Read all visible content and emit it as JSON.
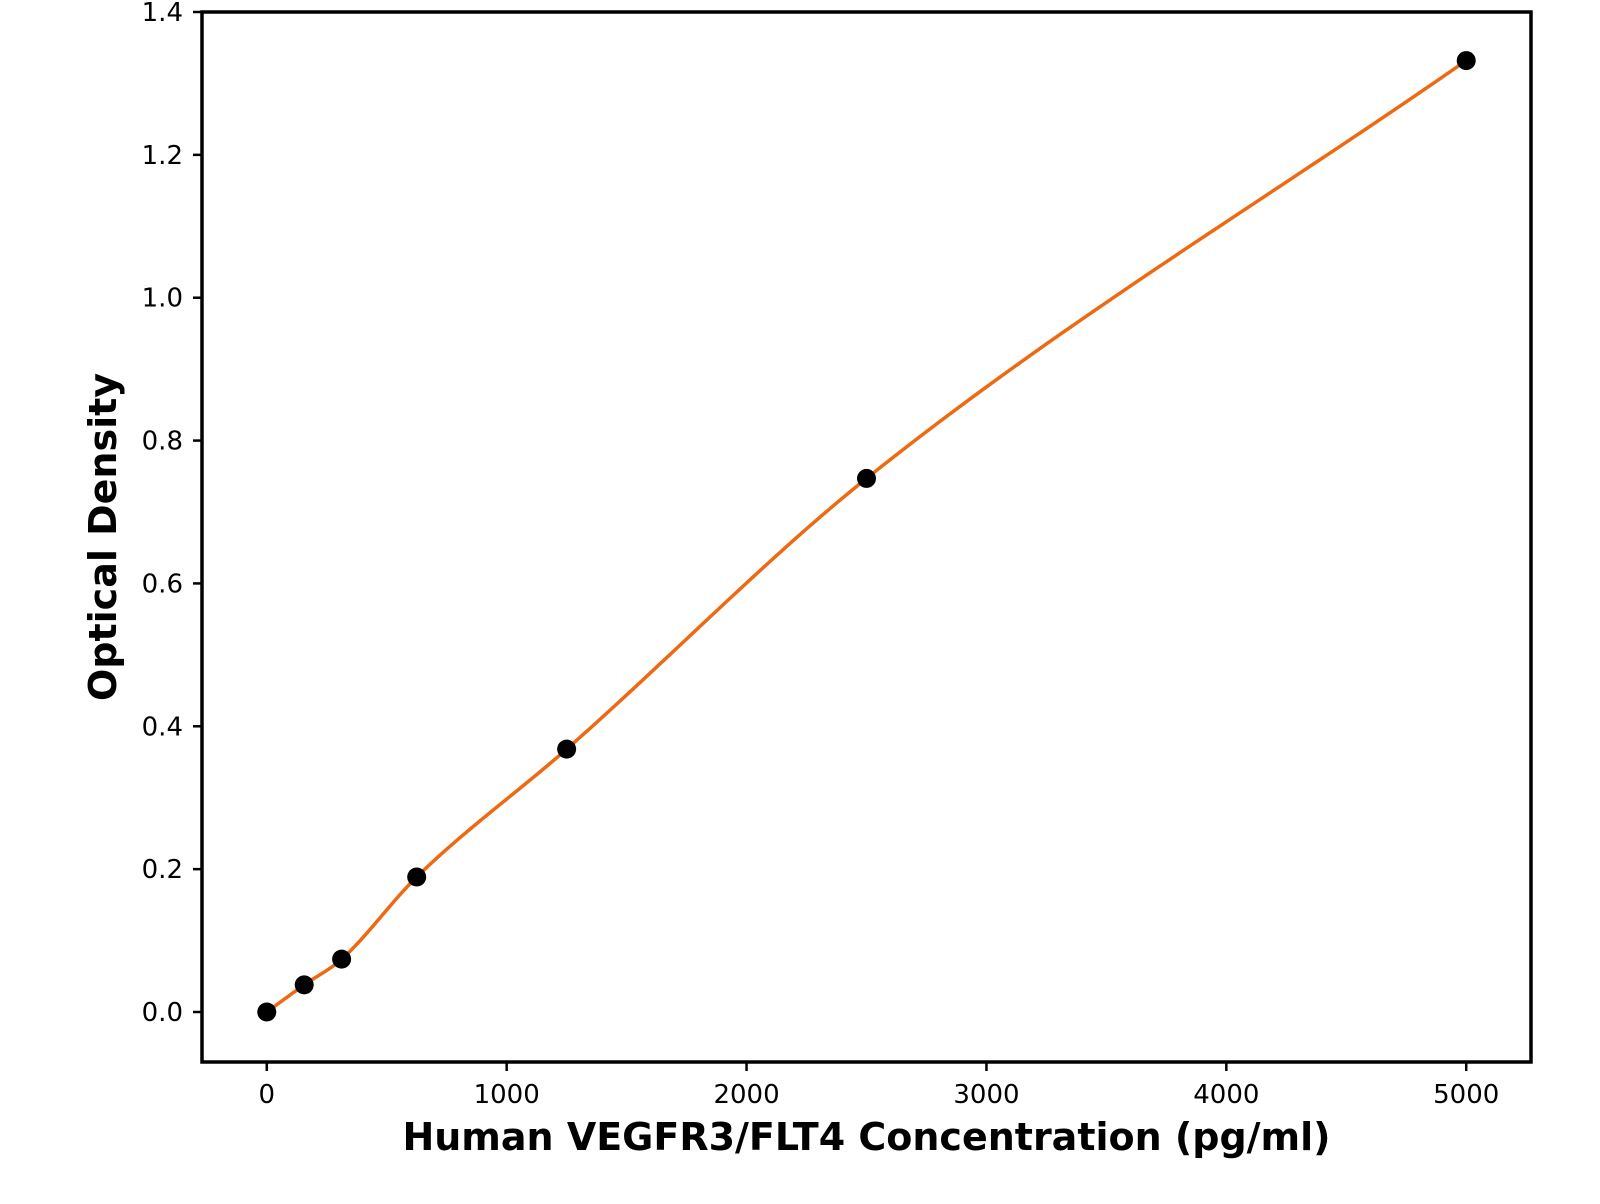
{
  "chart_data": {
    "type": "scatter",
    "title": "",
    "xlabel": "Human VEGFR3/FLT4 Concentration (pg/ml)",
    "ylabel": "Optical Density",
    "xlim": [
      -270,
      5270
    ],
    "ylim": [
      -0.07,
      1.4
    ],
    "x_ticks": [
      0,
      1000,
      2000,
      3000,
      4000,
      5000
    ],
    "y_ticks": [
      0.0,
      0.2,
      0.4,
      0.6,
      0.8,
      1.0,
      1.2,
      1.4
    ],
    "x_tick_labels": [
      "0",
      "1000",
      "2000",
      "3000",
      "4000",
      "5000"
    ],
    "y_tick_labels": [
      "0.0",
      "0.2",
      "0.4",
      "0.6",
      "0.8",
      "1.0",
      "1.2",
      "1.4"
    ],
    "grid": false,
    "series": [
      {
        "type": "scatter",
        "color": "#000000",
        "x": [
          0,
          156,
          312,
          625,
          1250,
          2500,
          5000
        ],
        "y": [
          0.0,
          0.038,
          0.074,
          0.189,
          0.368,
          0.747,
          1.332
        ]
      },
      {
        "type": "line",
        "color": "#ee6a12",
        "x": [
          0,
          156,
          312,
          625,
          1250,
          2500,
          5000
        ],
        "y": [
          0.0,
          0.038,
          0.074,
          0.189,
          0.368,
          0.747,
          1.332
        ]
      }
    ]
  }
}
